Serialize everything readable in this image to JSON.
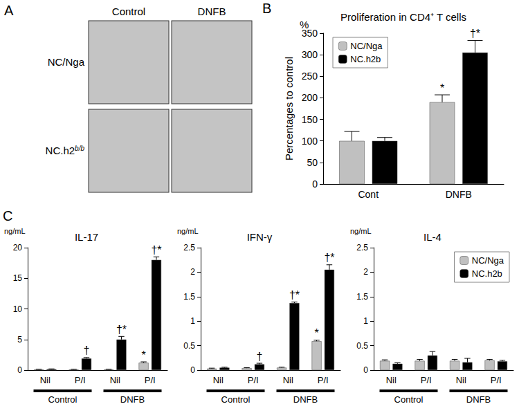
{
  "panel_a": {
    "panel": "A",
    "columns": [
      "Control",
      "DNFB"
    ],
    "rows": [
      {
        "text": "NC/Nga"
      },
      {
        "text": "NC.h2",
        "superscript": "b/b"
      }
    ]
  },
  "chart_data": [
    {
      "type": "bar",
      "panel": "B",
      "title": "Proliferation in CD4⁺ T cells",
      "unit": "%",
      "y_label": "Percentages to control",
      "categories": [
        "Cont",
        "DNFB"
      ],
      "series": [
        {
          "name": "NC/Nga",
          "color": "#c0c0c0",
          "values": [
            100,
            190
          ],
          "errors": [
            22,
            17
          ]
        },
        {
          "name": "NC.h2b",
          "color": "#000000",
          "values": [
            100,
            305
          ],
          "errors": [
            8,
            28
          ]
        }
      ],
      "annotations": [
        {
          "series": 0,
          "category": 1,
          "text": "*"
        },
        {
          "series": 1,
          "category": 1,
          "text": "†*"
        }
      ],
      "ylim": [
        0,
        350
      ],
      "yticks": [
        0,
        50,
        100,
        150,
        200,
        250,
        300,
        350
      ],
      "grid": false,
      "legend": "top-left"
    },
    {
      "type": "bar",
      "panel": "C",
      "title": "IL-17",
      "unit": "ng/mL",
      "categories": [
        "Nil",
        "P/I",
        "Nil",
        "P/I"
      ],
      "groups": [
        "Control",
        "DNFB"
      ],
      "series": [
        {
          "name": "NC/Nga",
          "color": "#c0c0c0",
          "values": [
            0.1,
            0.1,
            0.1,
            1.2
          ],
          "errors": [
            0.05,
            0.05,
            0.05,
            0.15
          ]
        },
        {
          "name": "NC.h2b",
          "color": "#000000",
          "values": [
            0.15,
            1.9,
            5.0,
            18.0
          ],
          "errors": [
            0.05,
            0.15,
            0.5,
            0.5
          ]
        }
      ],
      "annotations": [
        {
          "series": 1,
          "category": 1,
          "text": "†"
        },
        {
          "series": 1,
          "category": 2,
          "text": "†*"
        },
        {
          "series": 0,
          "category": 3,
          "text": "*"
        },
        {
          "series": 1,
          "category": 3,
          "text": "†*"
        }
      ],
      "ylim": [
        0,
        20
      ],
      "yticks": [
        0,
        5,
        10,
        15,
        20
      ],
      "grid": false
    },
    {
      "type": "bar",
      "title": "IFN-γ",
      "unit": "ng/mL",
      "categories": [
        "Nil",
        "P/I",
        "Nil",
        "P/I"
      ],
      "groups": [
        "Control",
        "DNFB"
      ],
      "series": [
        {
          "name": "NC/Nga",
          "color": "#c0c0c0",
          "values": [
            0.03,
            0.04,
            0.05,
            0.59
          ],
          "errors": [
            0.01,
            0.01,
            0.01,
            0.02
          ]
        },
        {
          "name": "NC.h2b",
          "color": "#000000",
          "values": [
            0.05,
            0.12,
            1.37,
            2.05
          ],
          "errors": [
            0.01,
            0.02,
            0.02,
            0.1
          ]
        }
      ],
      "annotations": [
        {
          "series": 1,
          "category": 1,
          "text": "†"
        },
        {
          "series": 1,
          "category": 2,
          "text": "†*"
        },
        {
          "series": 0,
          "category": 3,
          "text": "*"
        },
        {
          "series": 1,
          "category": 3,
          "text": "†*"
        }
      ],
      "ylim": [
        0,
        2.5
      ],
      "yticks": [
        0,
        0.5,
        1,
        1.5,
        2,
        2.5
      ],
      "grid": false
    },
    {
      "type": "bar",
      "title": "IL-4",
      "unit": "ng/mL",
      "categories": [
        "Nil",
        "P/I",
        "Nil",
        "P/I"
      ],
      "groups": [
        "Control",
        "DNFB"
      ],
      "series": [
        {
          "name": "NC/Nga",
          "color": "#c0c0c0",
          "values": [
            0.19,
            0.19,
            0.19,
            0.2
          ],
          "errors": [
            0.02,
            0.03,
            0.03,
            0.02
          ]
        },
        {
          "name": "NC.h2b",
          "color": "#000000",
          "values": [
            0.13,
            0.3,
            0.16,
            0.18
          ],
          "errors": [
            0.02,
            0.08,
            0.08,
            0.02
          ]
        }
      ],
      "ylim": [
        0,
        2.5
      ],
      "yticks": [
        0,
        0.5,
        1,
        1.5,
        2,
        2.5
      ],
      "grid": false,
      "legend": "top-right"
    }
  ]
}
